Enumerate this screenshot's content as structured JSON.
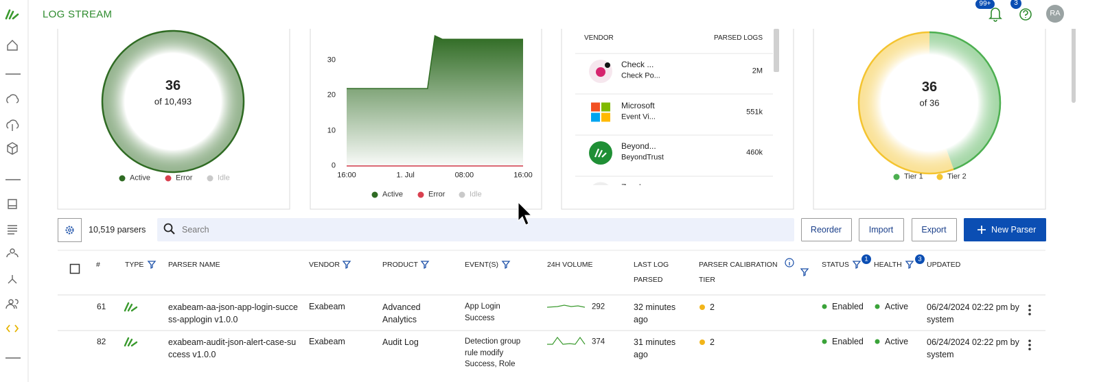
{
  "header": {
    "title": "LOG STREAM",
    "notifications_badge": "99+",
    "help_badge": "3",
    "avatar": "RA"
  },
  "chart_data": [
    {
      "type": "pie",
      "center_value": 36,
      "center_label": "of 10,493",
      "categories": [
        "Active",
        "Error",
        "Idle"
      ],
      "values": [
        36,
        0,
        0
      ],
      "colors": [
        "#2f6b23",
        "#d9404f",
        "#c9c9c9"
      ]
    },
    {
      "type": "area",
      "categories": [
        "16:00",
        null,
        null,
        null,
        null,
        null,
        null,
        null,
        "1. Jul",
        null,
        null,
        null,
        null,
        null,
        null,
        null,
        "08:00",
        null,
        null,
        null,
        null,
        null,
        null,
        null,
        "16:00"
      ],
      "series": [
        {
          "name": "Active",
          "color": "#2f6b23",
          "values": [
            22,
            22,
            22,
            22,
            22,
            22,
            22,
            22,
            22,
            22,
            22,
            22,
            37,
            36,
            36,
            36,
            36,
            36,
            36,
            36,
            36,
            36,
            36,
            36,
            36
          ]
        },
        {
          "name": "Error",
          "color": "#d9404f",
          "values": [
            0,
            0,
            0,
            0,
            0,
            0,
            0,
            0,
            0,
            0,
            0,
            0,
            0,
            0,
            0,
            0,
            0,
            0,
            0,
            0,
            0,
            0,
            0,
            0,
            0
          ]
        },
        {
          "name": "Idle",
          "color": "#c9c9c9",
          "values": [
            0,
            0,
            0,
            0,
            0,
            0,
            0,
            0,
            0,
            0,
            0,
            0,
            0,
            0,
            0,
            0,
            0,
            0,
            0,
            0,
            0,
            0,
            0,
            0,
            0
          ]
        }
      ],
      "ylim": [
        0,
        40
      ],
      "yticks": [
        0,
        10,
        20,
        30
      ]
    },
    {
      "type": "pie",
      "center_value": 36,
      "center_label": "of 36",
      "categories": [
        "Tier 1",
        "Tier 2"
      ],
      "values": [
        16,
        20
      ],
      "colors": [
        "#4caf50",
        "#f4c430"
      ]
    }
  ],
  "vendor_panel": {
    "headers": [
      "VENDOR",
      "PARSED LOGS"
    ],
    "rows": [
      {
        "vendor": "Check ...",
        "product": "Check Po...",
        "logs": "2M"
      },
      {
        "vendor": "Microsoft",
        "product": "Event Vi...",
        "logs": "551k"
      },
      {
        "vendor": "Beyond...",
        "product": "BeyondTrust",
        "logs": "460k"
      },
      {
        "vendor": "Zscaler"
      }
    ]
  },
  "toolbar": {
    "count": "10,519 parsers",
    "search_placeholder": "Search",
    "buttons": [
      "Reorder",
      "Import",
      "Export",
      "New Parser"
    ]
  },
  "table": {
    "columns": [
      "#",
      "TYPE",
      "PARSER NAME",
      "VENDOR",
      "PRODUCT",
      "EVENT(S)",
      "24H VOLUME",
      "LAST LOG PARSED",
      "PARSER CALIBRATION TIER",
      "STATUS",
      "HEALTH",
      "UPDATED"
    ],
    "status_filter_badge": "1",
    "health_filter_badge": "3",
    "rows": [
      {
        "id": 61,
        "parser_name": "exabeam-aa-json-app-login-success-applogin v1.0.0",
        "vendor": "Exabeam",
        "product": "Advanced Analytics",
        "events": "App Login Success",
        "volume": 292,
        "last_log": "32 minutes ago",
        "tier": 2,
        "status": "Enabled",
        "health": "Active",
        "updated": "06/24/2024 02:22 pm by system"
      },
      {
        "id": 82,
        "parser_name": "exabeam-audit-json-alert-case-success v1.0.0",
        "vendor": "Exabeam",
        "product": "Audit Log",
        "events": "Detection group rule modify Success, Role",
        "volume": 374,
        "last_log": "31 minutes ago",
        "tier": 2,
        "status": "Enabled",
        "health": "Active",
        "updated": "06/24/2024 02:22 pm by system"
      }
    ]
  }
}
